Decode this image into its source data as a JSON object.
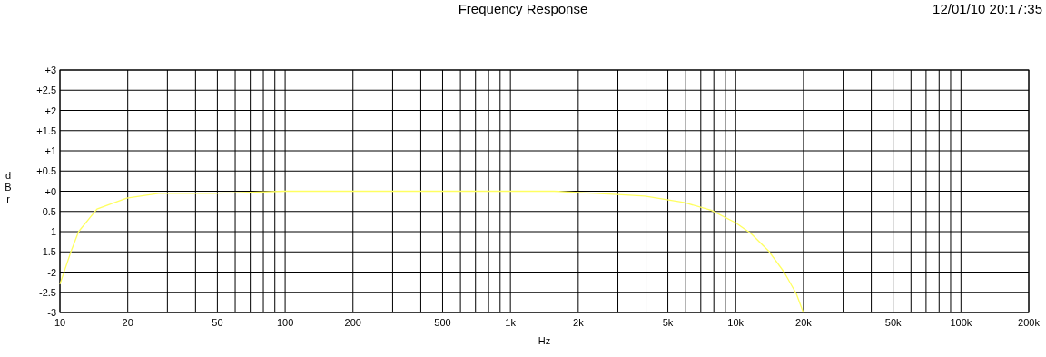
{
  "chart_data": {
    "type": "line",
    "title": "Frequency Response",
    "xlabel": "Hz",
    "ylabel": "dBr",
    "annotations": [
      "12/01/10 20:17:35"
    ],
    "log": "x",
    "grid": true,
    "line_style": "solid",
    "marker": "none",
    "xlim": [
      10,
      200000
    ],
    "ylim": [
      -3,
      3
    ],
    "xticks": [
      10,
      20,
      {
        "value": 30,
        "label": null
      },
      {
        "value": 40,
        "label": null
      },
      50,
      {
        "value": 60,
        "label": null
      },
      {
        "value": 70,
        "label": null
      },
      {
        "value": 80,
        "label": null
      },
      {
        "value": 90,
        "label": null
      },
      100,
      200,
      {
        "value": 300,
        "label": null
      },
      {
        "value": 400,
        "label": null
      },
      500,
      {
        "value": 600,
        "label": null
      },
      {
        "value": 700,
        "label": null
      },
      {
        "value": 800,
        "label": null
      },
      {
        "value": 900,
        "label": null
      },
      {
        "value": 1000,
        "label": "1k"
      },
      {
        "value": 2000,
        "label": "2k"
      },
      {
        "value": 3000,
        "label": null
      },
      {
        "value": 4000,
        "label": null
      },
      {
        "value": 5000,
        "label": "5k"
      },
      {
        "value": 6000,
        "label": null
      },
      {
        "value": 7000,
        "label": null
      },
      {
        "value": 8000,
        "label": null
      },
      {
        "value": 9000,
        "label": null
      },
      {
        "value": 10000,
        "label": "10k"
      },
      {
        "value": 20000,
        "label": "20k"
      },
      {
        "value": 30000,
        "label": null
      },
      {
        "value": 40000,
        "label": null
      },
      {
        "value": 50000,
        "label": "50k"
      },
      {
        "value": 60000,
        "label": null
      },
      {
        "value": 70000,
        "label": null
      },
      {
        "value": 80000,
        "label": null
      },
      {
        "value": 90000,
        "label": null
      },
      {
        "value": 100000,
        "label": "100k"
      },
      {
        "value": 200000,
        "label": "200k"
      }
    ],
    "yticks": [
      {
        "value": 3,
        "label": "+3"
      },
      {
        "value": 2.5,
        "label": "+2.5"
      },
      {
        "value": 2,
        "label": "+2"
      },
      {
        "value": 1.5,
        "label": "+1.5"
      },
      {
        "value": 1,
        "label": "+1"
      },
      {
        "value": 0.5,
        "label": "+0.5"
      },
      {
        "value": 0,
        "label": "+0"
      },
      -0.5,
      -1,
      -1.5,
      -2,
      -2.5,
      -3
    ],
    "series": [
      {
        "color": "#ffff60",
        "x": [
          10,
          11.2,
          12.1,
          14.6,
          19.8,
          27.9,
          50,
          99,
          1563,
          2990,
          3950,
          5890,
          7780,
          10000,
          11660,
          14060,
          16400,
          18600,
          19870,
          20000
        ],
        "values": [
          -2.3,
          -1.49,
          -1.0,
          -0.44,
          -0.17,
          -0.05,
          -0.05,
          0,
          0,
          -0.08,
          -0.12,
          -0.28,
          -0.47,
          -0.78,
          -1.04,
          -1.49,
          -2.0,
          -2.54,
          -2.97,
          -3
        ]
      }
    ]
  }
}
